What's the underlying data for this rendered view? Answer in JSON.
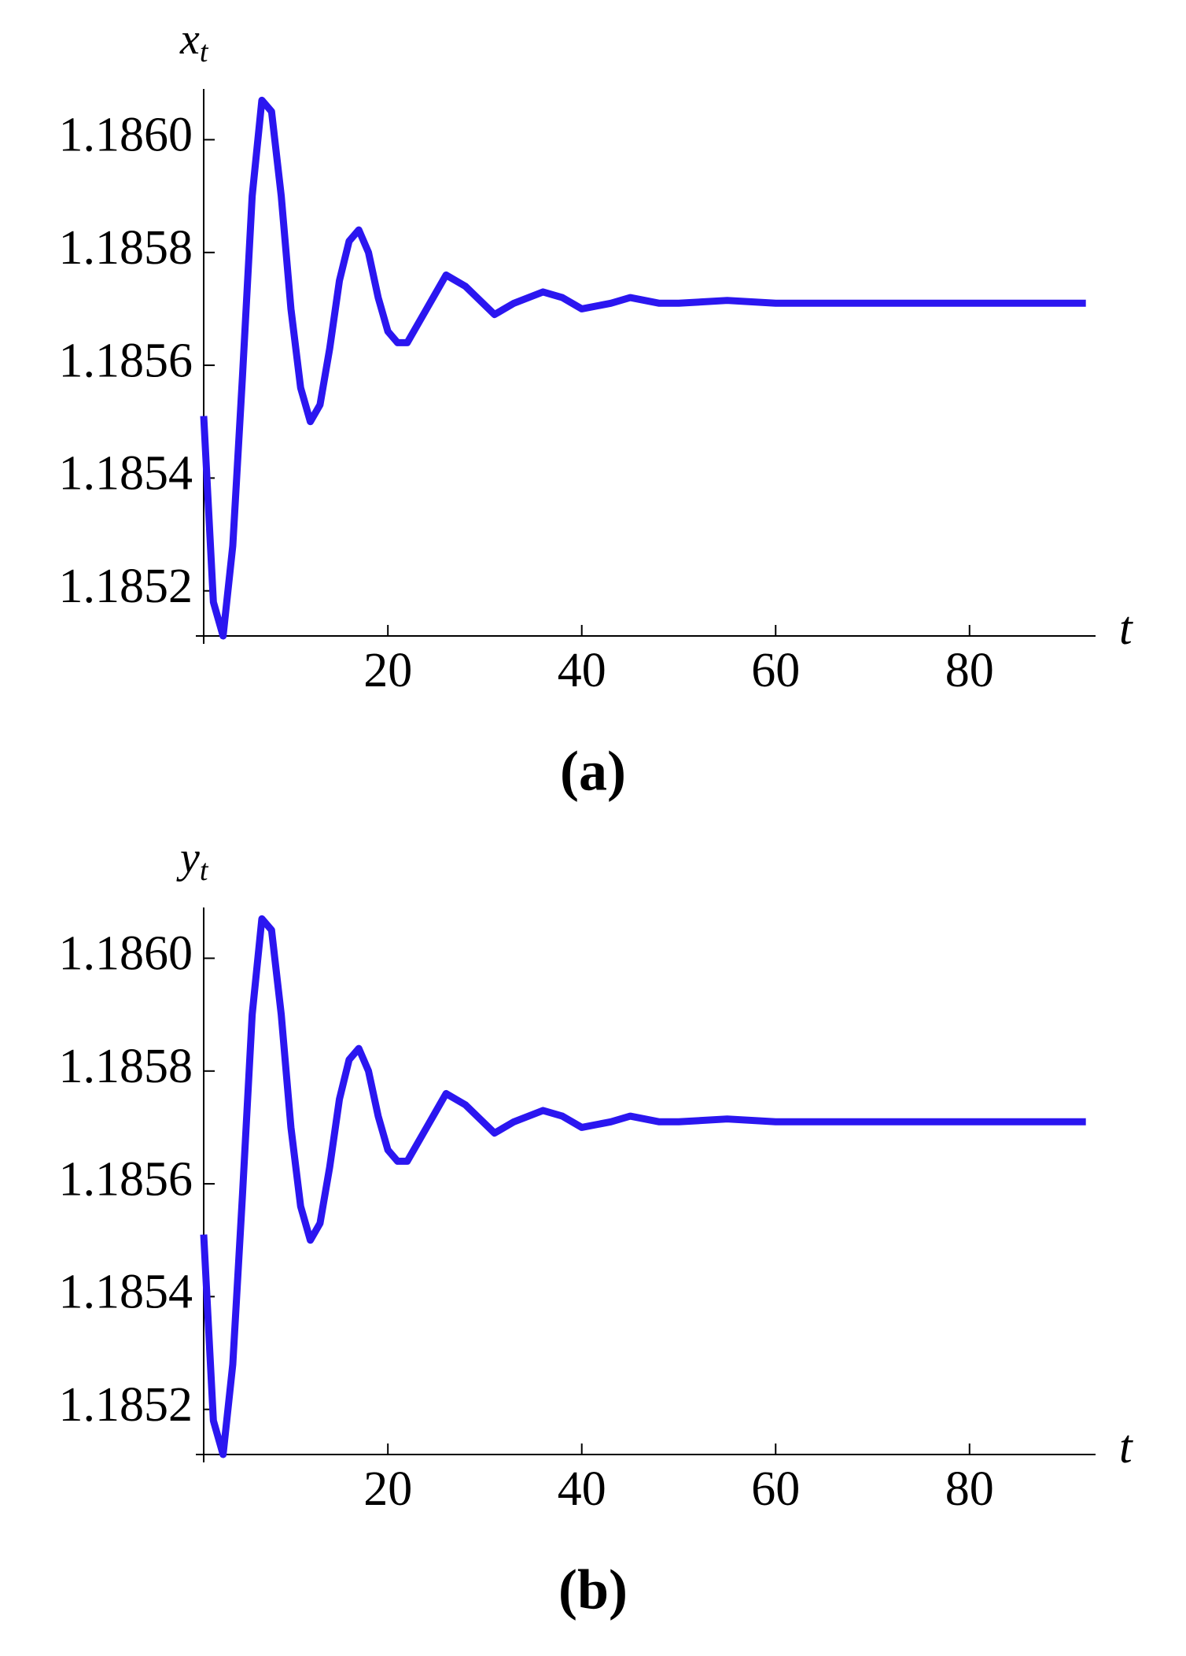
{
  "charts": [
    {
      "chart_data": {
        "type": "line",
        "y_label": "x",
        "y_label_subscript": "t",
        "x_label": "t",
        "caption": "(a)",
        "x": [
          1,
          2,
          3,
          4,
          5,
          6,
          7,
          8,
          9,
          10,
          11,
          12,
          13,
          14,
          15,
          16,
          17,
          18,
          19,
          20,
          21,
          22,
          24,
          26,
          28,
          31,
          33,
          36,
          38,
          40,
          43,
          45,
          48,
          50,
          55,
          60,
          65,
          70,
          80,
          92
        ],
        "series": [
          {
            "color": "#2b16f0",
            "values": [
              1.18551,
              1.18518,
              1.18512,
              1.18528,
              1.18558,
              1.1859,
              1.18607,
              1.18605,
              1.1859,
              1.1857,
              1.18556,
              1.1855,
              1.18553,
              1.18563,
              1.18575,
              1.18582,
              1.18584,
              1.1858,
              1.18572,
              1.18566,
              1.18564,
              1.18564,
              1.1857,
              1.18576,
              1.18574,
              1.18569,
              1.18571,
              1.18573,
              1.18572,
              1.1857,
              1.18571,
              1.18572,
              1.18571,
              1.18571,
              1.185715,
              1.18571,
              1.18571,
              1.18571,
              1.18571,
              1.18571
            ]
          }
        ],
        "xlim": [
          1,
          93
        ],
        "xticks": [
          20,
          40,
          60,
          80
        ],
        "ylim": [
          1.18512,
          1.18609
        ],
        "yticks": [
          1.1852,
          1.1854,
          1.1856,
          1.1858,
          {
            "value": 1.186,
            "label": "1.1860"
          }
        ]
      }
    },
    {
      "chart_data": {
        "type": "line",
        "y_label": "y",
        "y_label_subscript": "t",
        "x_label": "t",
        "caption": "(b)",
        "x": [
          1,
          2,
          3,
          4,
          5,
          6,
          7,
          8,
          9,
          10,
          11,
          12,
          13,
          14,
          15,
          16,
          17,
          18,
          19,
          20,
          21,
          22,
          24,
          26,
          28,
          31,
          33,
          36,
          38,
          40,
          43,
          45,
          48,
          50,
          55,
          60,
          65,
          70,
          80,
          92
        ],
        "series": [
          {
            "color": "#2b16f0",
            "values": [
              1.18551,
              1.18518,
              1.18512,
              1.18528,
              1.18558,
              1.1859,
              1.18607,
              1.18605,
              1.1859,
              1.1857,
              1.18556,
              1.1855,
              1.18553,
              1.18563,
              1.18575,
              1.18582,
              1.18584,
              1.1858,
              1.18572,
              1.18566,
              1.18564,
              1.18564,
              1.1857,
              1.18576,
              1.18574,
              1.18569,
              1.18571,
              1.18573,
              1.18572,
              1.1857,
              1.18571,
              1.18572,
              1.18571,
              1.18571,
              1.185715,
              1.18571,
              1.18571,
              1.18571,
              1.18571,
              1.18571
            ]
          }
        ],
        "xlim": [
          1,
          93
        ],
        "xticks": [
          20,
          40,
          60,
          80
        ],
        "ylim": [
          1.18512,
          1.18609
        ],
        "yticks": [
          1.1852,
          1.1854,
          1.1856,
          1.1858,
          {
            "value": 1.186,
            "label": "1.1860"
          }
        ]
      }
    }
  ]
}
